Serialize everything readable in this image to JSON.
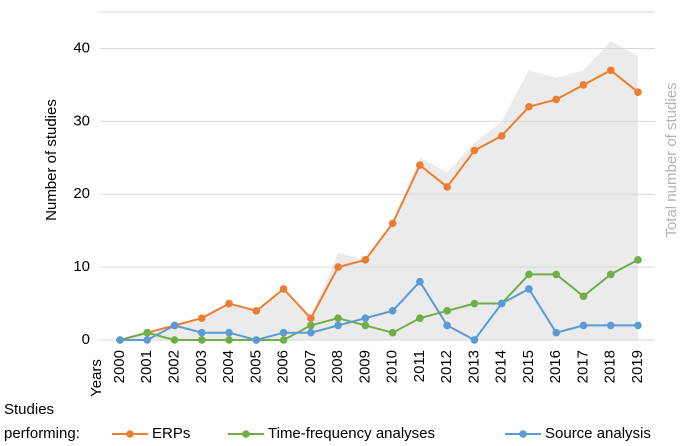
{
  "chart_data": {
    "type": "line",
    "y_label": "Number of studies",
    "x_label": "Years",
    "categories": [
      "2000",
      "2001",
      "2002",
      "2003",
      "2004",
      "2005",
      "2006",
      "2007",
      "2008",
      "2009",
      "2010",
      "2011",
      "2012",
      "2013",
      "2014",
      "2015",
      "2016",
      "2017",
      "2018",
      "2019"
    ],
    "area": {
      "name": "Total number of studies",
      "color": "#ebebeb",
      "label_color": "#b3b3b3",
      "values": [
        0,
        1,
        2,
        3,
        5,
        4,
        7,
        3,
        12,
        11,
        16,
        25,
        23,
        27,
        30,
        37,
        36,
        37,
        41,
        39
      ]
    },
    "series": [
      {
        "name": "ERPs",
        "color": "#ed7d31",
        "values": [
          0,
          1,
          2,
          3,
          5,
          4,
          7,
          3,
          10,
          11,
          16,
          24,
          21,
          26,
          28,
          32,
          33,
          35,
          37,
          34
        ]
      },
      {
        "name": "Time-frequency analyses",
        "color": "#70ad47",
        "values": [
          0,
          1,
          0,
          0,
          0,
          0,
          0,
          2,
          3,
          2,
          1,
          3,
          4,
          5,
          5,
          9,
          9,
          6,
          9,
          11
        ]
      },
      {
        "name": "Source analysis",
        "color": "#5b9bd5",
        "values": [
          0,
          0,
          2,
          1,
          1,
          0,
          1,
          1,
          2,
          3,
          4,
          8,
          2,
          0,
          5,
          7,
          1,
          2,
          2,
          2
        ]
      }
    ],
    "legend_title": [
      "Studies",
      "performing:"
    ],
    "ylim": [
      0,
      45
    ],
    "yticks": [
      0,
      10,
      20,
      30,
      40
    ],
    "grid": true
  }
}
